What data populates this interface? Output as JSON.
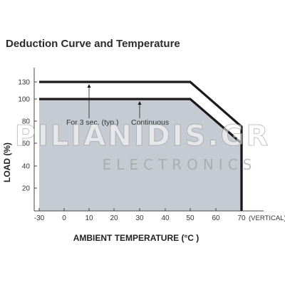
{
  "chart_data": {
    "type": "area",
    "title": "Deduction Curve and Temperature",
    "xlabel": "AMBIENT TEMPERATURE (°C )",
    "ylabel": "LOAD (%)",
    "x_ticks": [
      -30,
      0,
      10,
      20,
      30,
      40,
      50,
      60,
      70
    ],
    "x_axis_note": "(VERTICAL)",
    "y_ticks": [
      20,
      40,
      60,
      80,
      100,
      130
    ],
    "xlim": [
      -30,
      75
    ],
    "ylim": [
      0,
      140
    ],
    "grid": false,
    "series": [
      {
        "name": "For 3 sec. (typ.)",
        "x": [
          -30,
          50,
          70,
          70
        ],
        "y": [
          130,
          130,
          75,
          0
        ],
        "fill": false
      },
      {
        "name": "Continuous",
        "x": [
          -30,
          50,
          70,
          70
        ],
        "y": [
          100,
          100,
          60,
          0
        ],
        "fill": true
      }
    ],
    "annotations": [
      {
        "text": "For 3 sec. (typ.)",
        "x": 10,
        "arrow_to_series": 0
      },
      {
        "text": "Continuous",
        "x": 30,
        "arrow_to_series": 1
      }
    ],
    "colors": {
      "fill": "#c6cbd3",
      "line": "#1a1a1a",
      "axis": "#444444",
      "text": "#333333"
    }
  },
  "watermark": {
    "brand": "PILIANIDIS.GR",
    "sub": "ELECTRONICS"
  }
}
